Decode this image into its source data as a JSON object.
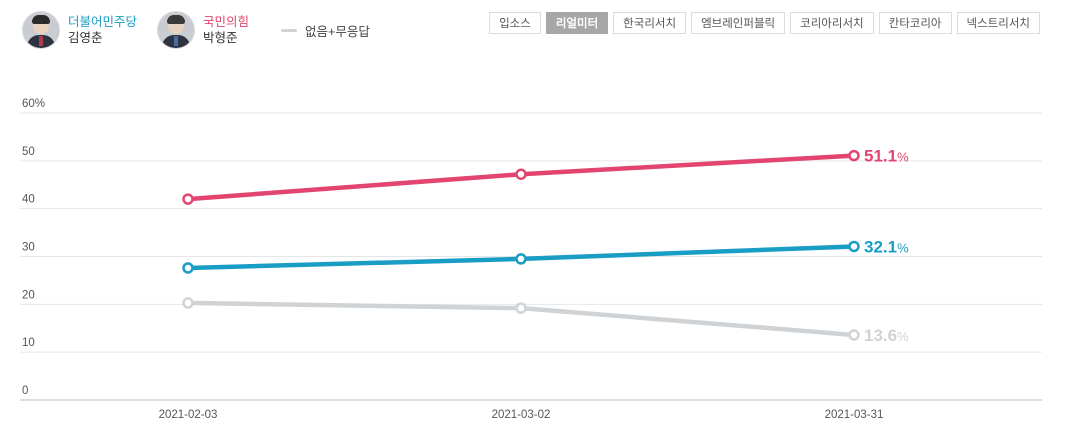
{
  "legend": {
    "candidates": [
      {
        "party": "더불어민주당",
        "name": "김영춘",
        "color": "#1a9dc4"
      },
      {
        "party": "국민의힘",
        "name": "박형준",
        "color": "#e2456f"
      }
    ],
    "other_label": "없음+무응답"
  },
  "sources": [
    {
      "label": "입소스",
      "active": false
    },
    {
      "label": "리얼미터",
      "active": true
    },
    {
      "label": "한국리서치",
      "active": false
    },
    {
      "label": "엠브레인퍼블릭",
      "active": false
    },
    {
      "label": "코리아리서치",
      "active": false
    },
    {
      "label": "칸타코리아",
      "active": false
    },
    {
      "label": "넥스트리서치",
      "active": false
    }
  ],
  "chart_data": {
    "type": "line",
    "x": [
      "2021-02-03",
      "2021-03-02",
      "2021-03-31"
    ],
    "yticks": [
      "0",
      "10",
      "20",
      "30",
      "40",
      "50",
      "60%"
    ],
    "ylim": [
      0,
      60
    ],
    "grid": true,
    "series": [
      {
        "name": "국민의힘 박형준",
        "color": "#e2456f",
        "values": [
          42.0,
          47.2,
          51.1
        ],
        "end_label": "51.1",
        "end_unit": "%"
      },
      {
        "name": "더불어민주당 김영춘",
        "color": "#1a9dc4",
        "values": [
          27.6,
          29.5,
          32.1
        ],
        "end_label": "32.1",
        "end_unit": "%"
      },
      {
        "name": "없음+무응답",
        "color": "#cfd3d6",
        "values": [
          20.3,
          19.2,
          13.6
        ],
        "end_label": "13.6",
        "end_unit": "%"
      }
    ]
  }
}
